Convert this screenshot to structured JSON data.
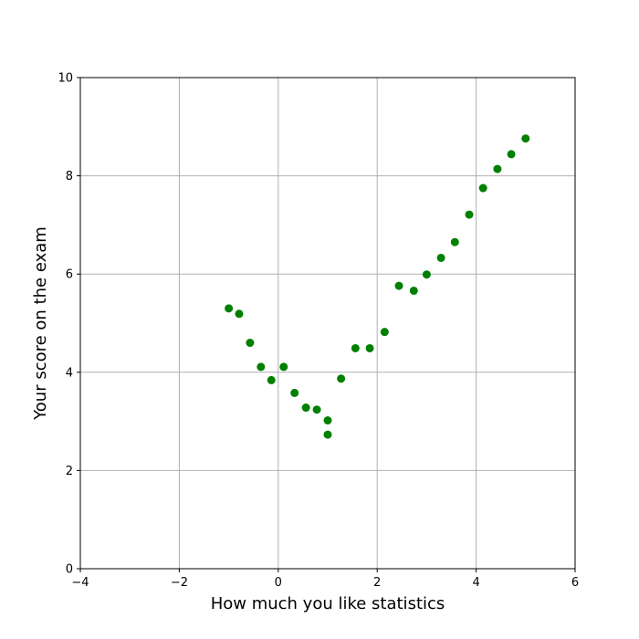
{
  "chart_data": {
    "type": "scatter",
    "title": "",
    "xlabel": "How much you like statistics",
    "ylabel": "Your score on the exam",
    "xlim": [
      -4,
      6
    ],
    "ylim": [
      0,
      10
    ],
    "x_ticks": [
      -4,
      -2,
      0,
      2,
      4,
      6
    ],
    "y_ticks": [
      0,
      2,
      4,
      6,
      8,
      10
    ],
    "x_tick_labels": [
      "−4",
      "−2",
      "0",
      "2",
      "4",
      "6"
    ],
    "y_tick_labels": [
      "0",
      "2",
      "4",
      "6",
      "8",
      "10"
    ],
    "grid": true,
    "marker_color": "#008000",
    "points": [
      {
        "x": -1.0,
        "y": 5.3
      },
      {
        "x": -0.79,
        "y": 5.19
      },
      {
        "x": -0.57,
        "y": 4.6
      },
      {
        "x": -0.35,
        "y": 4.11
      },
      {
        "x": -0.14,
        "y": 3.84
      },
      {
        "x": 0.11,
        "y": 4.11
      },
      {
        "x": 0.33,
        "y": 3.58
      },
      {
        "x": 0.56,
        "y": 3.28
      },
      {
        "x": 0.78,
        "y": 3.24
      },
      {
        "x": 1.0,
        "y": 3.02
      },
      {
        "x": 1.0,
        "y": 2.73
      },
      {
        "x": 1.27,
        "y": 3.87
      },
      {
        "x": 1.56,
        "y": 4.49
      },
      {
        "x": 1.85,
        "y": 4.49
      },
      {
        "x": 2.15,
        "y": 4.82
      },
      {
        "x": 2.44,
        "y": 5.76
      },
      {
        "x": 2.74,
        "y": 5.66
      },
      {
        "x": 3.0,
        "y": 5.99
      },
      {
        "x": 3.29,
        "y": 6.33
      },
      {
        "x": 3.57,
        "y": 6.65
      },
      {
        "x": 3.86,
        "y": 7.21
      },
      {
        "x": 4.14,
        "y": 7.75
      },
      {
        "x": 4.43,
        "y": 8.14
      },
      {
        "x": 4.71,
        "y": 8.44
      },
      {
        "x": 5.0,
        "y": 8.76
      }
    ]
  }
}
